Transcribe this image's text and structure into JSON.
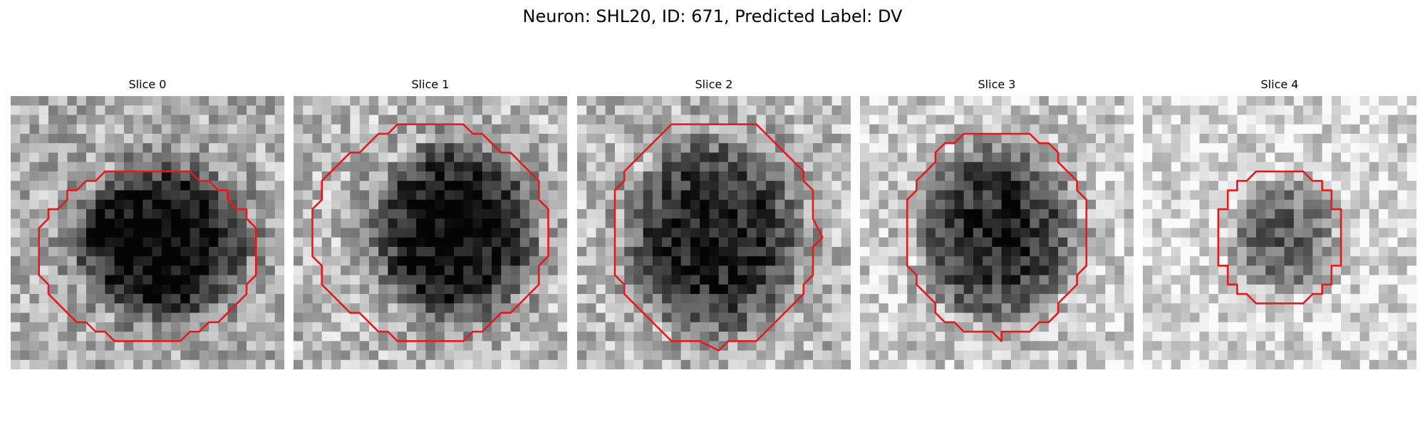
{
  "figure": {
    "title": "Neuron: SHL20, ID: 671, Predicted Label: DV"
  },
  "panels": [
    {
      "title": "Slice 0"
    },
    {
      "title": "Slice 1"
    },
    {
      "title": "Slice 2"
    },
    {
      "title": "Slice 3"
    },
    {
      "title": "Slice 4"
    }
  ],
  "colors": {
    "contour": "#e41a1c",
    "background": "#ffffff"
  }
}
